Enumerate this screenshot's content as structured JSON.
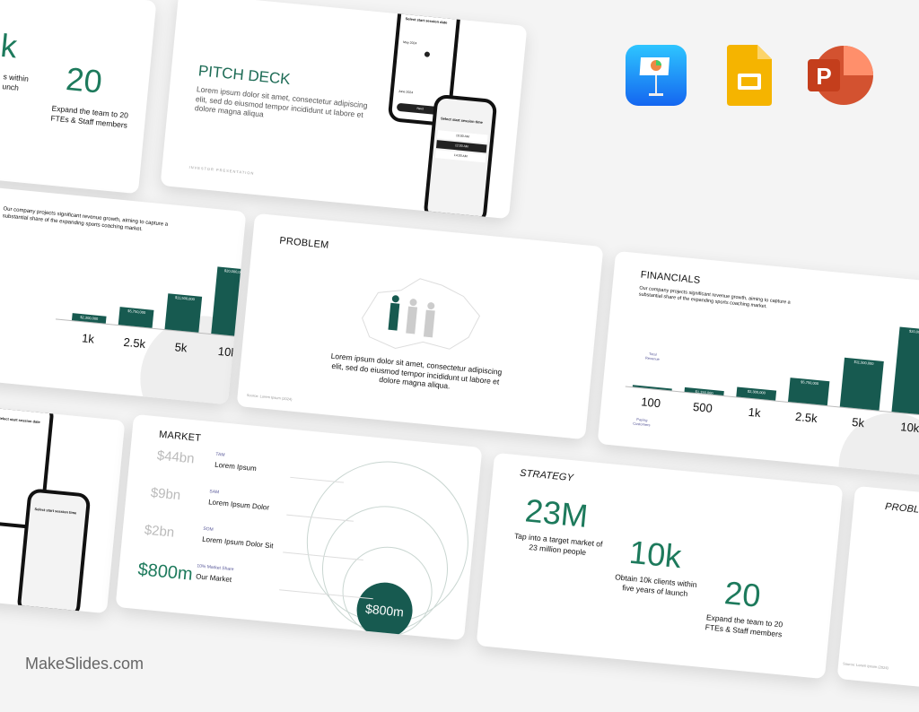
{
  "brand": "MakeSlides.com",
  "apps": [
    {
      "name": "Keynote",
      "icon": "keynote-icon",
      "color": "#1a8cff"
    },
    {
      "name": "Google Slides",
      "icon": "google-slides-icon",
      "color": "#f5b400"
    },
    {
      "name": "PowerPoint",
      "icon": "powerpoint-icon",
      "color": "#c43e1c"
    }
  ],
  "accent": "#175a50",
  "strategy": {
    "title": "STRATEGY",
    "stats": [
      {
        "value": "23M",
        "text": "Tap into a target market of 23 million people"
      },
      {
        "value": "10k",
        "text": "Obtain 10k clients within five years of launch"
      },
      {
        "value": "20",
        "text": "Expand the team to 20 FTEs & Staff members"
      }
    ],
    "partial_text_1": "s within",
    "partial_text_2": "unch",
    "partial_value": "k"
  },
  "pitch": {
    "title": "PITCH DECK",
    "body": "Lorem ipsum dolor sit amet, consectetur adipiscing elit, sed do eiusmod tempor incididunt ut labore et dolore magna aliqua",
    "footer": "INVESTOR PRESENTATION",
    "phone1": {
      "title": "Select start session date",
      "month1": "May 2024",
      "month2": "June 2024",
      "button": "Next"
    },
    "phone2": {
      "title": "Select start session time",
      "slots": [
        "10:00 AM",
        "12:00 AM",
        "14:00 AM"
      ]
    }
  },
  "problem": {
    "title": "PROBLEM",
    "body": "Lorem ipsum dolor sit amet, consectetur adipiscing elit, sed do eiusmod tempor incididunt ut labore et dolore magna aliqua.",
    "source": "Source: Lorem Ipsum (2024)"
  },
  "financials": {
    "title": "FINANCIALS",
    "body": "Our company projects significant revenue growth, aiming to capture a substantial share of the expanding sports coaching market.",
    "revenue_label": "Total Revenue",
    "customers_label": "Paying Customers",
    "chart_data": {
      "type": "bar",
      "categories": [
        "100",
        "500",
        "1k",
        "2.5k",
        "5k",
        "10k"
      ],
      "values": [
        230000,
        1150000,
        2300000,
        5750000,
        11500000,
        20000000
      ],
      "labels": [
        "",
        "$1,150,000",
        "$2,300,000",
        "$5,750,000",
        "$11,500,000",
        "$20,000,000"
      ]
    }
  },
  "market": {
    "title": "MARKET",
    "rows": [
      {
        "value": "$44bn",
        "tag": "TAM",
        "label": "Lorem Ipsum"
      },
      {
        "value": "$9bn",
        "tag": "SAM",
        "label": "Lorem Ipsum Dolor"
      },
      {
        "value": "$2bn",
        "tag": "SOM",
        "label": "Lorem Ipsum Dolor Sit"
      },
      {
        "value": "$800m",
        "tag": "10% Market Share",
        "label": "Our Market"
      }
    ],
    "circle_label": "$800m"
  }
}
